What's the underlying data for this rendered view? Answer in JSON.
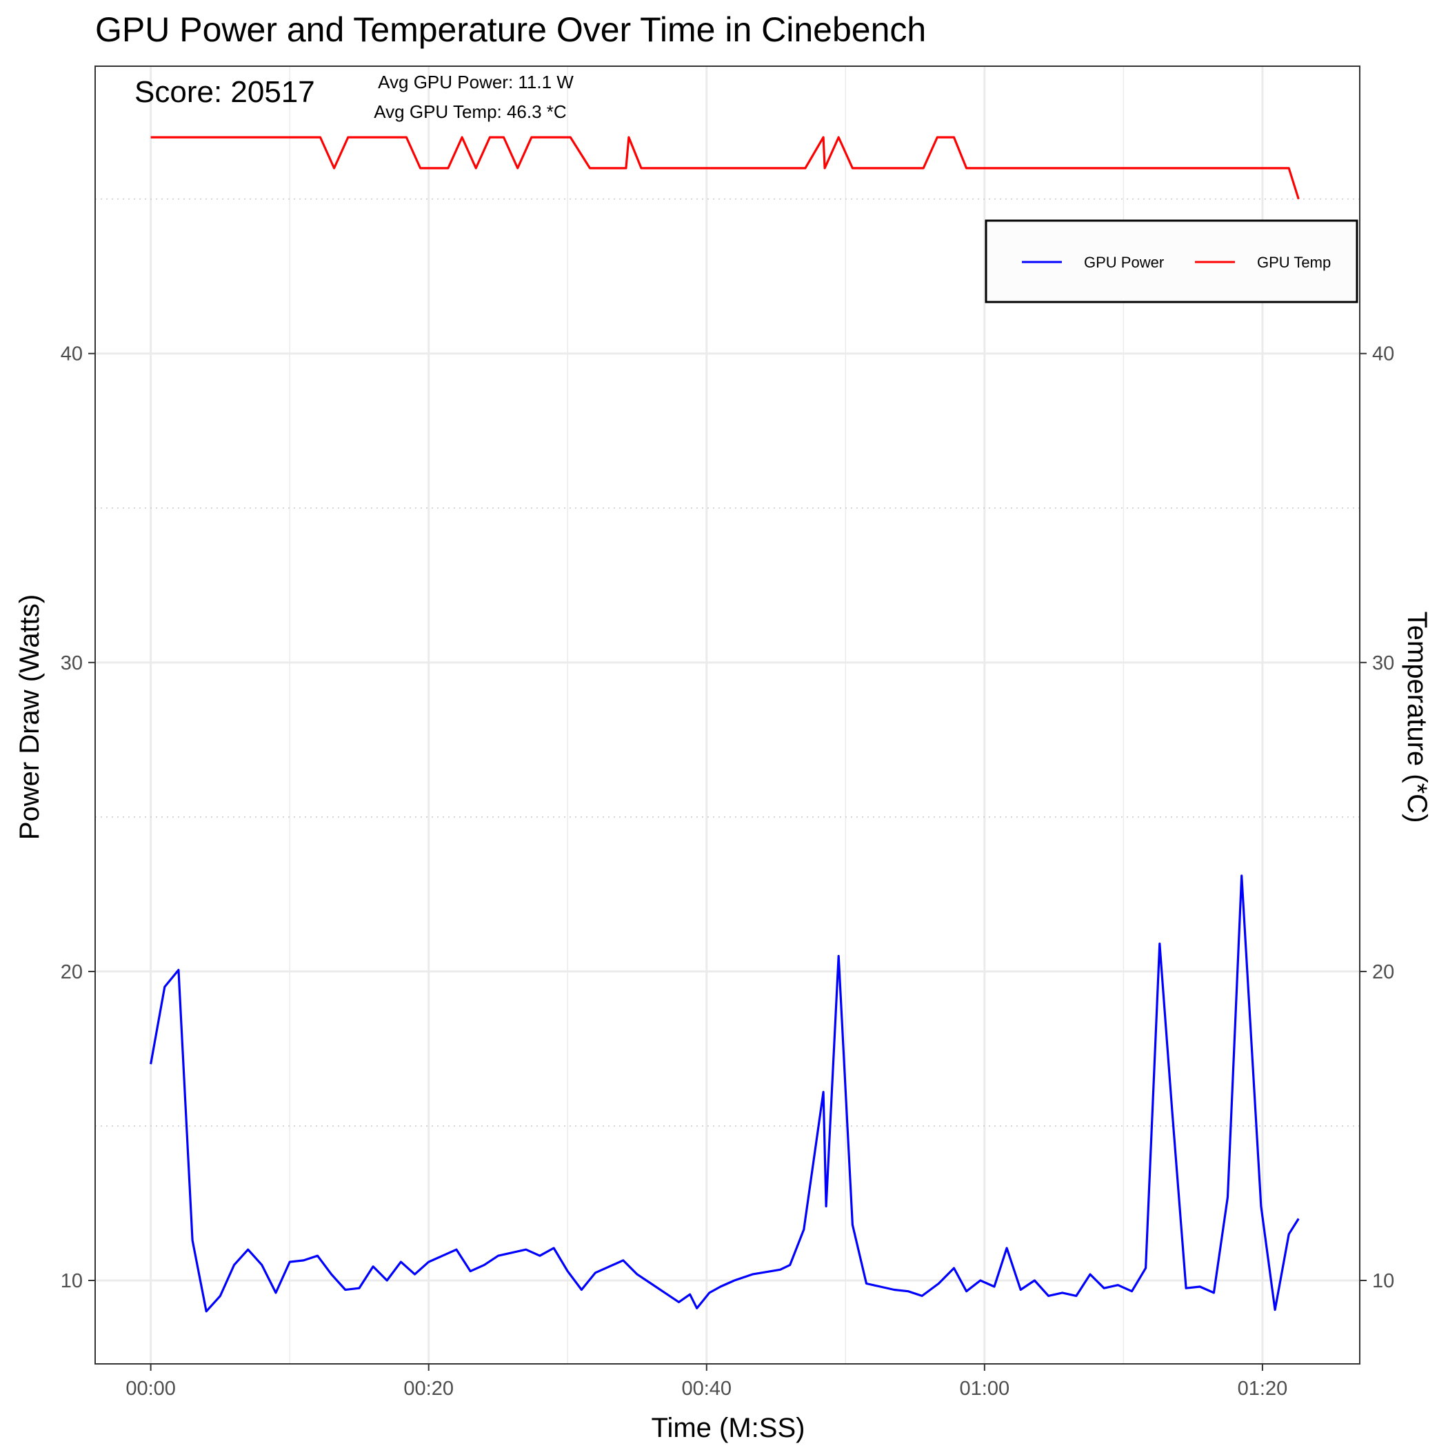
{
  "chart_data": {
    "type": "line",
    "title": "GPU Power and Temperature Over Time in Cinebench",
    "xlabel": "Time (M:SS)",
    "ylabel": "Power Draw (Watts)",
    "y2label": "Temperature (*C)",
    "xlim": [
      -4,
      87
    ],
    "ylim": [
      7.3,
      49.3
    ],
    "x_ticks": [
      0,
      20,
      40,
      60,
      80
    ],
    "x_tick_labels": [
      "00:00",
      "00:20",
      "00:40",
      "01:00",
      "01:20"
    ],
    "y_ticks": [
      10,
      20,
      30,
      40
    ],
    "y2_ticks": [
      10,
      20,
      30,
      40
    ],
    "grid": true,
    "legend_position": "top-right",
    "colors": {
      "power": "#0000ff",
      "temp": "#ff0000",
      "grid": "#ebebeb"
    },
    "annotations": {
      "score": "Score: 20517",
      "avg_power": "Avg GPU Power: 11.1 W",
      "avg_temp": "Avg GPU Temp: 46.3 *C"
    },
    "series": [
      {
        "name": "GPU Power",
        "x": [
          0,
          1,
          2,
          3,
          4,
          5,
          6,
          7,
          8,
          9,
          10,
          11,
          12,
          13,
          14,
          15,
          16,
          17,
          18,
          19,
          20,
          21,
          22,
          23,
          24,
          25,
          26,
          27,
          28,
          29,
          30,
          31,
          32,
          33,
          34,
          35,
          36,
          37,
          38,
          38.8,
          39.3,
          40.2,
          41,
          42,
          43.3,
          45.3,
          46,
          47,
          48.4,
          48.6,
          49.5,
          50.5,
          51.5,
          52.5,
          53.5,
          54.5,
          55.5,
          56.7,
          57.8,
          58.7,
          59.7,
          60.7,
          61.6,
          62.6,
          63.6,
          64.6,
          65.6,
          66.6,
          67.6,
          68.6,
          69.6,
          70.6,
          71.6,
          72.6,
          73.5,
          74.5,
          75.5,
          76.5,
          77.5,
          78.5,
          79.9,
          80.9,
          81.9,
          82.6
        ],
        "y": [
          17,
          19.5,
          20.05,
          11.3,
          9,
          9.5,
          10.5,
          11,
          10.5,
          9.6,
          10.6,
          10.65,
          10.8,
          10.2,
          9.7,
          9.75,
          10.45,
          10,
          10.6,
          10.2,
          10.6,
          10.8,
          11,
          10.3,
          10.5,
          10.8,
          10.9,
          11,
          10.8,
          11.05,
          10.3,
          9.7,
          10.25,
          10.45,
          10.65,
          10.2,
          9.9,
          9.6,
          9.3,
          9.55,
          9.1,
          9.6,
          9.8,
          10,
          10.2,
          10.35,
          10.5,
          11.65,
          16.1,
          12.4,
          20.5,
          11.8,
          9.9,
          9.8,
          9.7,
          9.65,
          9.5,
          9.9,
          10.4,
          9.65,
          10,
          9.8,
          11.05,
          9.7,
          10,
          9.5,
          9.6,
          9.5,
          10.2,
          9.75,
          9.85,
          9.65,
          10.4,
          20.9,
          15.5,
          9.75,
          9.8,
          9.6,
          12.7,
          23.1,
          12.4,
          9.05,
          11.5,
          12
        ]
      },
      {
        "name": "GPU Temp",
        "x": [
          0,
          12.2,
          13.2,
          14.2,
          18.4,
          19.4,
          21.4,
          22.4,
          23.4,
          24.4,
          25.4,
          26.4,
          27.4,
          30.2,
          31.6,
          34.2,
          34.4,
          35.3,
          47.1,
          48.4,
          48.5,
          49.5,
          50.5,
          55.6,
          56.6,
          57.8,
          58.7,
          81.9,
          82.6
        ],
        "y": [
          47,
          47,
          46,
          47,
          47,
          46,
          46,
          47,
          46,
          47,
          47,
          46,
          47,
          47,
          46,
          46,
          47,
          46,
          46,
          47,
          46,
          47,
          46,
          46,
          47,
          47,
          46,
          46,
          45
        ]
      }
    ]
  }
}
